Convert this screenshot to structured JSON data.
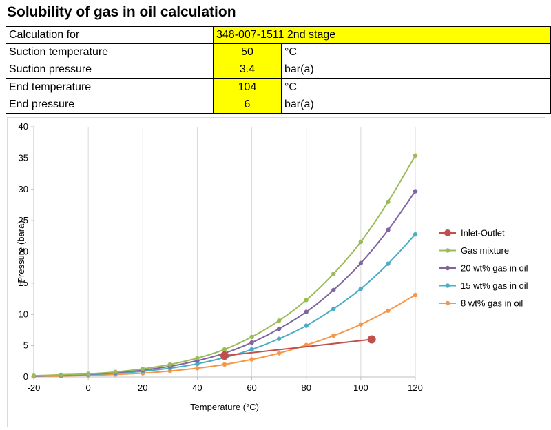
{
  "title": "Solubility of gas in oil calculation",
  "params": {
    "calc_for_label": "Calculation for",
    "calc_for_value": "348-007-1511 2nd stage",
    "rows": [
      {
        "label": "Suction temperature",
        "value": "50",
        "unit": "°C"
      },
      {
        "label": "Suction pressure",
        "value": "3.4",
        "unit": "bar(a)"
      },
      {
        "label": "End temperature",
        "value": "104",
        "unit": "°C"
      },
      {
        "label": "End pressure",
        "value": "6",
        "unit": "bar(a)"
      }
    ],
    "highlight_color": "#ffff00"
  },
  "chart_data": {
    "type": "line",
    "xlabel": "Temperature (°C)",
    "ylabel": "Pressure (bara)",
    "xlim": [
      -20,
      120
    ],
    "ylim": [
      0,
      40
    ],
    "xticks": [
      -20,
      0,
      20,
      40,
      60,
      80,
      100,
      120
    ],
    "yticks": [
      0,
      5,
      10,
      15,
      20,
      25,
      30,
      35,
      40
    ],
    "grid": "vertical",
    "legend_position": "right",
    "series": [
      {
        "name": "Inlet-Outlet",
        "color": "#c0504d",
        "marker_size": "large",
        "x": [
          50,
          104
        ],
        "y": [
          3.4,
          6
        ]
      },
      {
        "name": "Gas mixture",
        "color": "#9bbb59",
        "marker_size": "small",
        "x": [
          -20,
          -10,
          0,
          10,
          20,
          30,
          40,
          50,
          60,
          70,
          80,
          90,
          100,
          110,
          120
        ],
        "y": [
          0.2,
          0.35,
          0.5,
          0.8,
          1.3,
          2.0,
          3.0,
          4.4,
          6.4,
          9.0,
          12.3,
          16.5,
          21.6,
          28.0,
          35.4
        ]
      },
      {
        "name": "20 wt% gas in oil",
        "color": "#8064a2",
        "marker_size": "small",
        "x": [
          -20,
          -10,
          0,
          10,
          20,
          30,
          40,
          50,
          60,
          70,
          80,
          90,
          100,
          110,
          120
        ],
        "y": [
          0.15,
          0.3,
          0.45,
          0.7,
          1.1,
          1.7,
          2.6,
          3.8,
          5.5,
          7.7,
          10.4,
          13.9,
          18.2,
          23.5,
          29.7
        ]
      },
      {
        "name": "15 wt% gas in oil",
        "color": "#4bacc6",
        "marker_size": "small",
        "x": [
          -20,
          -10,
          0,
          10,
          20,
          30,
          40,
          50,
          60,
          70,
          80,
          90,
          100,
          110,
          120
        ],
        "y": [
          0.12,
          0.25,
          0.38,
          0.6,
          0.9,
          1.4,
          2.1,
          3.1,
          4.4,
          6.1,
          8.2,
          10.9,
          14.1,
          18.1,
          22.8
        ]
      },
      {
        "name": "8 wt% gas in oil",
        "color": "#f79646",
        "marker_size": "small",
        "x": [
          -20,
          -10,
          0,
          10,
          20,
          30,
          40,
          50,
          60,
          70,
          80,
          90,
          100,
          110,
          120
        ],
        "y": [
          0.08,
          0.15,
          0.25,
          0.4,
          0.6,
          0.95,
          1.4,
          2.0,
          2.8,
          3.8,
          5.1,
          6.6,
          8.4,
          10.6,
          13.1
        ]
      }
    ]
  }
}
